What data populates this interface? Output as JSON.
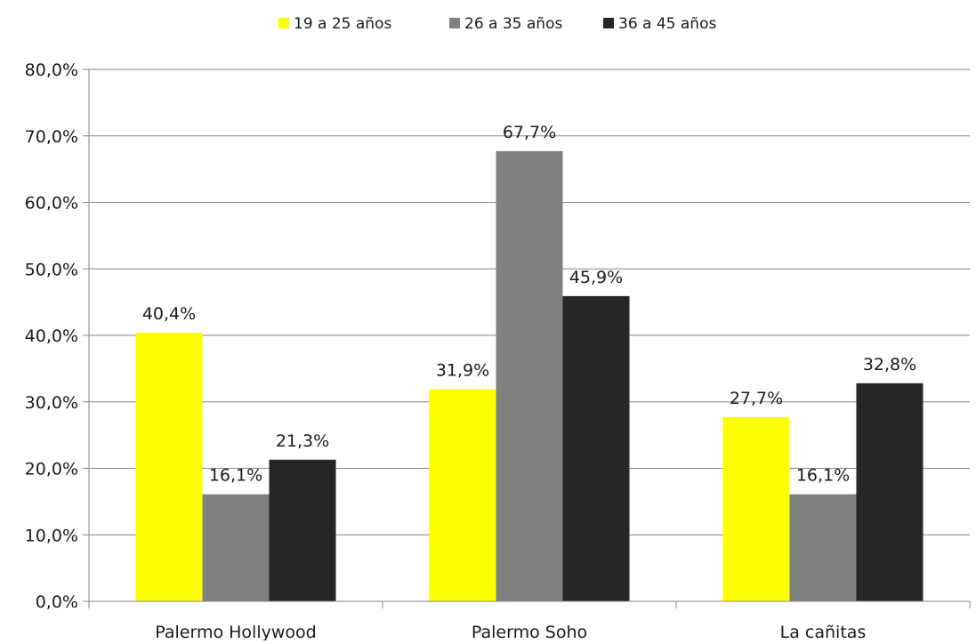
{
  "chart_data": {
    "type": "bar",
    "categories": [
      "Palermo Hollywood",
      "Palermo Soho",
      "La cañitas"
    ],
    "series": [
      {
        "name": "19 a 25 años",
        "color": "#ffff00",
        "values": [
          40.4,
          31.9,
          27.7
        ],
        "labels": [
          "40,4%",
          "31,9%",
          "27,7%"
        ]
      },
      {
        "name": "26 a 35 años",
        "color": "#808080",
        "values": [
          16.1,
          67.7,
          16.1
        ],
        "labels": [
          "16,1%",
          "67,7%",
          "16,1%"
        ]
      },
      {
        "name": "36 a 45 años",
        "color": "#262626",
        "values": [
          21.3,
          45.9,
          32.8
        ],
        "labels": [
          "21,3%",
          "45,9%",
          "32,8%"
        ]
      }
    ],
    "ylim": [
      0,
      80
    ],
    "yticks": [
      0,
      10,
      20,
      30,
      40,
      50,
      60,
      70,
      80
    ],
    "ytick_labels": [
      "0,0%",
      "10,0%",
      "20,0%",
      "30,0%",
      "40,0%",
      "50,0%",
      "60,0%",
      "70,0%",
      "80,0%"
    ],
    "grid": true,
    "legend_position": "top-center",
    "title": "",
    "xlabel": "",
    "ylabel": ""
  }
}
